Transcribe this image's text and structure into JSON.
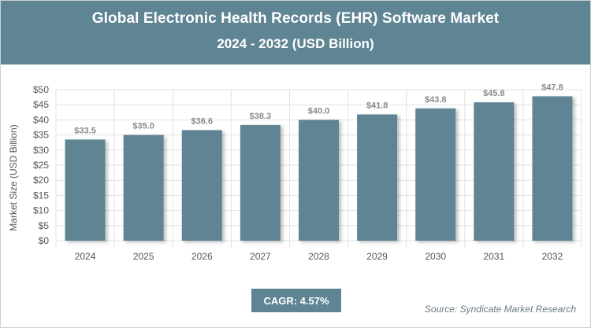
{
  "header": {
    "title": "Global Electronic Health Records (EHR) Software Market",
    "subtitle": "2024 - 2032 (USD Billion)"
  },
  "cagr_label": "CAGR: 4.57%",
  "source_label": "Source: Syndicate Market Research",
  "colors": {
    "accent": "#5f8494",
    "bar": "#5f8494",
    "grid": "#e2e2e2",
    "axis_text": "#555555",
    "value_label": "#8a8a8a"
  },
  "chart_data": {
    "type": "bar",
    "categories": [
      "2024",
      "2025",
      "2026",
      "2027",
      "2028",
      "2029",
      "2030",
      "2031",
      "2032"
    ],
    "values": [
      33.5,
      35.0,
      36.6,
      38.3,
      40.0,
      41.8,
      43.8,
      45.8,
      47.8
    ],
    "value_labels": [
      "$33.5",
      "$35.0",
      "$36.6",
      "$38.3",
      "$40.0",
      "$41.8",
      "$43.8",
      "$45.8",
      "$47.8"
    ],
    "y_ticks": [
      "$0",
      "$5",
      "$10",
      "$15",
      "$20",
      "$25",
      "$30",
      "$35",
      "$40",
      "$45",
      "$50"
    ],
    "ylabel": "Market Size (USD Billion)",
    "ylim": [
      0,
      50
    ],
    "grid": true
  }
}
